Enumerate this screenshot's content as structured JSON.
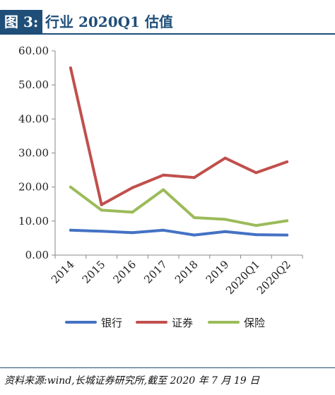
{
  "header": {
    "label": "图 3:",
    "title": "行业 2020Q1 估值"
  },
  "chart_data": {
    "type": "line",
    "categories": [
      "2014",
      "2015",
      "2016",
      "2017",
      "2018",
      "2019",
      "2020Q1",
      "2020Q2"
    ],
    "ylim": [
      0,
      60
    ],
    "yticks": [
      "0.00",
      "10.00",
      "20.00",
      "30.00",
      "40.00",
      "50.00",
      "60.00"
    ],
    "grid": false,
    "legend_position": "bottom",
    "series": [
      {
        "name": "银行",
        "color": "#4472c4",
        "values": [
          7.3,
          7.0,
          6.6,
          7.3,
          5.9,
          6.9,
          6.0,
          5.9
        ]
      },
      {
        "name": "证券",
        "color": "#c0504d",
        "values": [
          55.0,
          14.8,
          19.8,
          23.5,
          22.8,
          28.5,
          24.2,
          27.4
        ]
      },
      {
        "name": "保险",
        "color": "#9bbb59",
        "values": [
          20.0,
          13.2,
          12.6,
          19.2,
          11.0,
          10.5,
          8.7,
          10.1
        ]
      }
    ]
  },
  "footer": {
    "source": "资料来源:wind,长城证券研究所,截至 2020 年 7 月 19 日"
  }
}
